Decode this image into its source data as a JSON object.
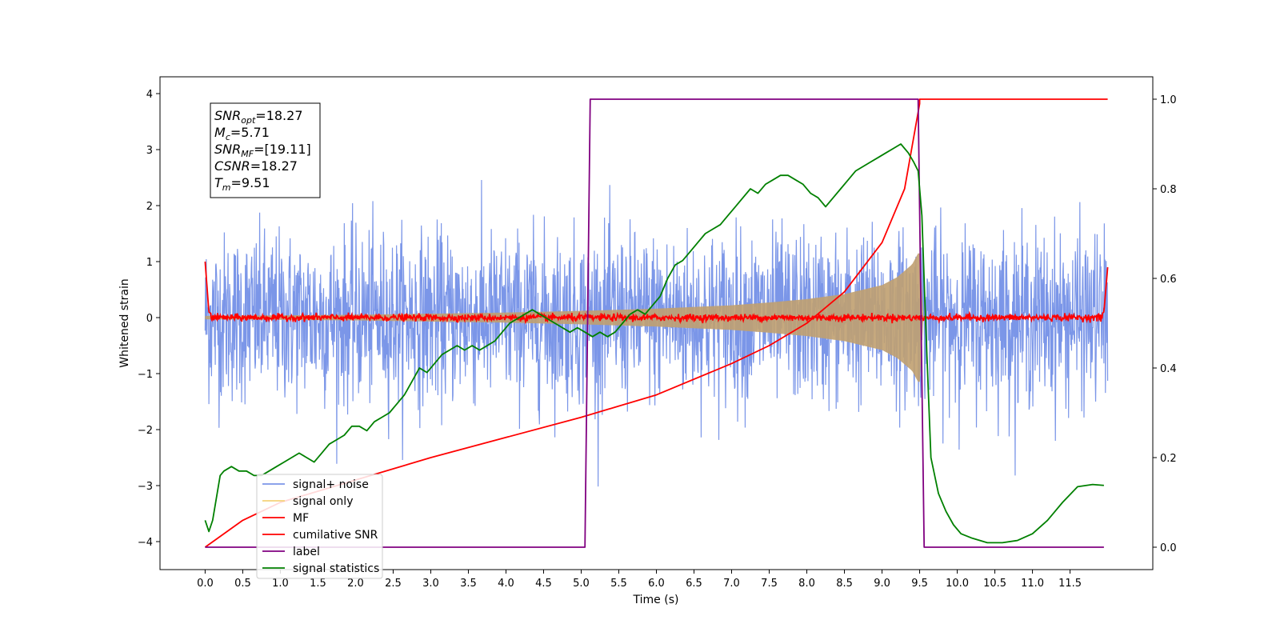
{
  "chart_data": {
    "type": "line",
    "title": "",
    "xlabel": "Time (s)",
    "ylabel": "Whitened strain",
    "y2label": "",
    "xlim": [
      -0.6,
      12.6
    ],
    "ylim": [
      -4.5,
      4.3
    ],
    "y2lim": [
      -0.05,
      1.05
    ],
    "x_ticks": [
      "0.0",
      "0.5",
      "1.0",
      "1.5",
      "2.0",
      "2.5",
      "3.0",
      "3.5",
      "4.0",
      "4.5",
      "5.0",
      "5.5",
      "6.0",
      "6.5",
      "7.0",
      "7.5",
      "8.0",
      "8.5",
      "9.0",
      "9.5",
      "10.0",
      "10.5",
      "11.0",
      "11.5"
    ],
    "y_ticks": [
      "4",
      "3",
      "2",
      "1",
      "0",
      "−1",
      "−2",
      "−3",
      "−4"
    ],
    "y2_ticks": [
      "1.0",
      "0.8",
      "0.6",
      "0.4",
      "0.2",
      "0.0"
    ],
    "grid": false,
    "legend_position": "lower-left",
    "annotation": {
      "lines": [
        {
          "sym": "SNR",
          "sub": "opt",
          "val": "=18.27"
        },
        {
          "sym": "M",
          "sub": "c",
          "val": "=5.71"
        },
        {
          "sym": "SNR",
          "sub": "MF",
          "val": "=[19.11]"
        },
        {
          "sym": "CSNR",
          "sub": "",
          "val": "=18.27"
        },
        {
          "sym": "T",
          "sub": "m",
          "val": "=9.51"
        }
      ]
    },
    "series": [
      {
        "name": "signal+ noise",
        "color": "#7b96e8",
        "axis": "left",
        "note": "white noise, envelope approx ±2",
        "x": [
          0.0,
          12.0
        ],
        "noise_std": 0.75
      },
      {
        "name": "signal only",
        "color": "#f5d27a",
        "axis": "left",
        "fill_color": "#c0a070",
        "x": [
          0.0,
          1.0,
          2.0,
          3.0,
          4.0,
          5.0,
          6.0,
          7.0,
          7.5,
          8.0,
          8.5,
          9.0,
          9.2,
          9.4,
          9.5,
          9.55
        ],
        "envelope": [
          0.03,
          0.04,
          0.05,
          0.07,
          0.09,
          0.12,
          0.16,
          0.22,
          0.27,
          0.33,
          0.42,
          0.58,
          0.72,
          0.95,
          1.2,
          0.0
        ]
      },
      {
        "name": "MF",
        "color": "#ff0000",
        "axis": "left",
        "x": [
          0.0,
          0.05,
          0.1,
          11.9,
          11.95,
          12.0
        ],
        "y": [
          1.0,
          0.1,
          0.05,
          0.05,
          0.1,
          0.9
        ],
        "noise_std": 0.03
      },
      {
        "name": "cumilative SNR",
        "color": "#ff0000",
        "axis": "right",
        "x": [
          0.0,
          0.5,
          1.0,
          2.0,
          3.0,
          4.0,
          5.0,
          6.0,
          7.0,
          7.5,
          8.0,
          8.5,
          9.0,
          9.3,
          9.5,
          9.5,
          12.0
        ],
        "y": [
          0.0,
          0.06,
          0.1,
          0.15,
          0.2,
          0.245,
          0.29,
          0.34,
          0.41,
          0.45,
          0.5,
          0.57,
          0.68,
          0.8,
          0.99,
          1.0,
          1.0
        ]
      },
      {
        "name": "label",
        "color": "#800080",
        "axis": "right",
        "x": [
          0.0,
          5.05,
          5.12,
          9.48,
          9.56,
          11.95
        ],
        "y": [
          0.0,
          0.0,
          1.0,
          1.0,
          0.0,
          0.0
        ]
      },
      {
        "name": "signal statistics",
        "color": "#008000",
        "axis": "right",
        "x": [
          0.0,
          0.05,
          0.1,
          0.2,
          0.25,
          0.35,
          0.45,
          0.55,
          0.65,
          0.75,
          0.85,
          0.95,
          1.05,
          1.15,
          1.25,
          1.35,
          1.45,
          1.55,
          1.65,
          1.75,
          1.85,
          1.95,
          2.05,
          2.15,
          2.25,
          2.35,
          2.45,
          2.55,
          2.65,
          2.75,
          2.85,
          2.95,
          3.05,
          3.15,
          3.25,
          3.35,
          3.45,
          3.55,
          3.65,
          3.75,
          3.85,
          3.95,
          4.05,
          4.15,
          4.25,
          4.35,
          4.45,
          4.55,
          4.65,
          4.75,
          4.85,
          4.95,
          5.05,
          5.15,
          5.25,
          5.35,
          5.45,
          5.55,
          5.65,
          5.75,
          5.85,
          5.95,
          6.05,
          6.15,
          6.25,
          6.35,
          6.45,
          6.55,
          6.65,
          6.75,
          6.85,
          6.95,
          7.05,
          7.15,
          7.25,
          7.35,
          7.45,
          7.55,
          7.65,
          7.75,
          7.85,
          7.95,
          8.05,
          8.15,
          8.25,
          8.35,
          8.45,
          8.55,
          8.65,
          8.75,
          8.85,
          8.95,
          9.05,
          9.15,
          9.25,
          9.35,
          9.42,
          9.48,
          9.53,
          9.58,
          9.65,
          9.75,
          9.85,
          9.95,
          10.05,
          10.2,
          10.4,
          10.6,
          10.8,
          11.0,
          11.2,
          11.4,
          11.6,
          11.8,
          11.95
        ],
        "y": [
          0.06,
          0.035,
          0.06,
          0.16,
          0.17,
          0.18,
          0.17,
          0.17,
          0.16,
          0.16,
          0.17,
          0.18,
          0.19,
          0.2,
          0.21,
          0.2,
          0.19,
          0.21,
          0.23,
          0.24,
          0.25,
          0.27,
          0.27,
          0.26,
          0.28,
          0.29,
          0.3,
          0.32,
          0.34,
          0.37,
          0.4,
          0.39,
          0.41,
          0.43,
          0.44,
          0.45,
          0.44,
          0.45,
          0.44,
          0.45,
          0.46,
          0.48,
          0.5,
          0.51,
          0.52,
          0.53,
          0.52,
          0.51,
          0.5,
          0.49,
          0.48,
          0.49,
          0.48,
          0.47,
          0.48,
          0.47,
          0.48,
          0.5,
          0.52,
          0.53,
          0.52,
          0.54,
          0.56,
          0.6,
          0.63,
          0.64,
          0.66,
          0.68,
          0.7,
          0.71,
          0.72,
          0.74,
          0.76,
          0.78,
          0.8,
          0.79,
          0.81,
          0.82,
          0.83,
          0.83,
          0.82,
          0.81,
          0.79,
          0.78,
          0.76,
          0.78,
          0.8,
          0.82,
          0.84,
          0.85,
          0.86,
          0.87,
          0.88,
          0.89,
          0.9,
          0.88,
          0.86,
          0.84,
          0.74,
          0.5,
          0.2,
          0.12,
          0.08,
          0.05,
          0.03,
          0.02,
          0.01,
          0.01,
          0.015,
          0.03,
          0.06,
          0.1,
          0.135,
          0.14,
          0.138
        ]
      }
    ]
  }
}
